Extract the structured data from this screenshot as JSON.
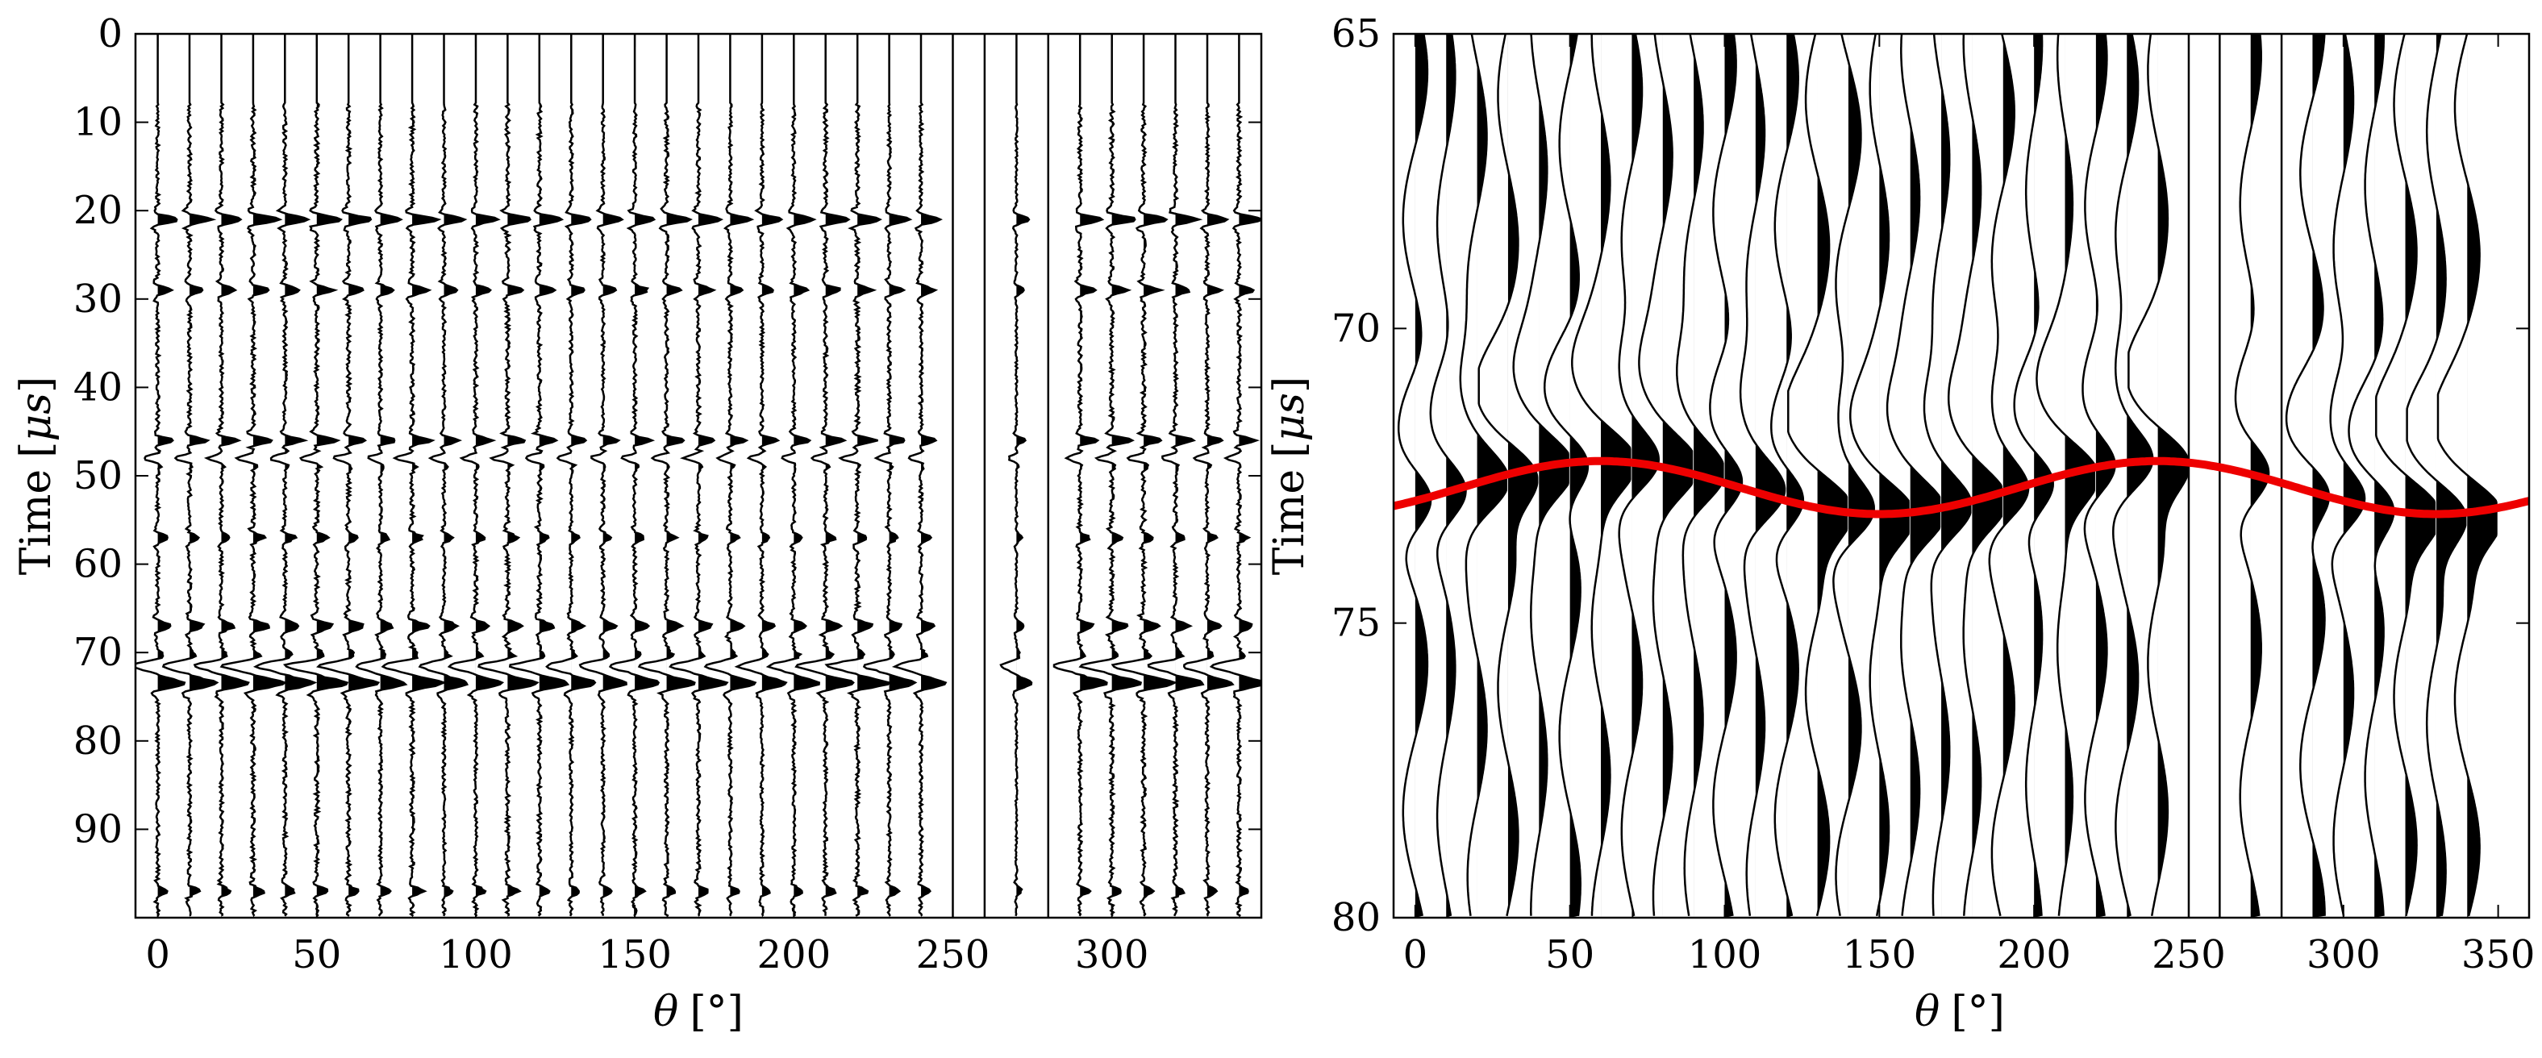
{
  "chart_data": [
    {
      "type": "seismic_wiggle",
      "xlabel_symbol": "θ",
      "xlabel_unit": "[°]",
      "ylabel_text": "Time",
      "ylabel_unit_open": "[",
      "ylabel_unit_mu": "μ",
      "ylabel_unit_s": "s",
      "ylabel_unit_close": "]",
      "xlim": [
        -7,
        347
      ],
      "ylim": [
        0,
        100
      ],
      "y_reversed": true,
      "xticks": [
        0,
        50,
        100,
        150,
        200,
        250,
        300
      ],
      "xtick_labels": [
        "0",
        "50",
        "100",
        "150",
        "200",
        "250",
        "300"
      ],
      "yticks": [
        0,
        10,
        20,
        30,
        40,
        50,
        60,
        70,
        80,
        90
      ],
      "ytick_labels": [
        "0",
        "10",
        "20",
        "30",
        "40",
        "50",
        "60",
        "70",
        "80",
        "90"
      ],
      "trace_angles": [
        0,
        10,
        20,
        30,
        40,
        50,
        60,
        70,
        80,
        90,
        100,
        110,
        120,
        130,
        140,
        150,
        160,
        170,
        180,
        190,
        200,
        210,
        220,
        230,
        240,
        250,
        260,
        270,
        280,
        290,
        300,
        310,
        320,
        330,
        340
      ],
      "dead_traces": [
        250,
        260,
        280
      ],
      "weak_traces": [
        270
      ],
      "events_us": [
        21,
        29,
        46,
        48,
        57,
        67,
        71.5,
        73,
        97
      ],
      "main_event_us": 72
    },
    {
      "type": "seismic_wiggle",
      "xlabel_symbol": "θ",
      "xlabel_unit": "[°]",
      "ylabel_text": "Time",
      "ylabel_unit_open": "[",
      "ylabel_unit_mu": "μ",
      "ylabel_unit_s": "s",
      "ylabel_unit_close": "]",
      "xlim": [
        -7,
        360
      ],
      "ylim": [
        65,
        80
      ],
      "y_reversed": true,
      "xticks": [
        0,
        50,
        100,
        150,
        200,
        250,
        300,
        350
      ],
      "xtick_labels": [
        "0",
        "50",
        "100",
        "150",
        "200",
        "250",
        "300",
        "350"
      ],
      "yticks": [
        65,
        70,
        75,
        80
      ],
      "ytick_labels": [
        "65",
        "70",
        "75",
        "80"
      ],
      "trace_angles": [
        0,
        10,
        20,
        30,
        40,
        50,
        60,
        70,
        80,
        90,
        100,
        110,
        120,
        130,
        140,
        150,
        160,
        170,
        180,
        190,
        200,
        210,
        220,
        230,
        240,
        250,
        260,
        270,
        280,
        290,
        300,
        310,
        320,
        330,
        340
      ],
      "dead_traces": [
        250,
        260,
        280
      ],
      "fit_curve": {
        "color": "#ee0000",
        "mean_us": 72.7,
        "amplitude_us": 0.45,
        "min_at_deg": 60,
        "period_deg": 180
      }
    }
  ]
}
